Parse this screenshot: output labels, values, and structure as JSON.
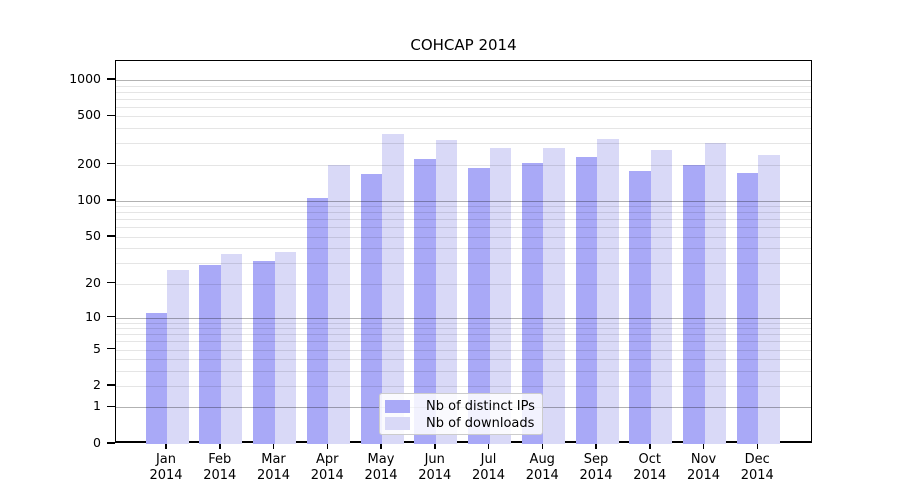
{
  "title": "COHCAP 2014",
  "colors": {
    "ips_bar": "#a9a9f7",
    "downloads_bar": "#d9d9f7",
    "grid_minor": "rgba(0,0,0,0.10)",
    "grid_major": "rgba(0,0,0,0.30)",
    "axis": "#000000",
    "legend_border": "#cccccc",
    "legend_background": "rgba(255,255,255,0.85)"
  },
  "legend": {
    "entries": [
      {
        "label": "Nb of distinct IPs",
        "color_key": "ips_bar"
      },
      {
        "label": "Nb of downloads",
        "color_key": "downloads_bar"
      }
    ]
  },
  "chart_data": {
    "type": "bar",
    "title": "COHCAP 2014",
    "scale": "log10(value+1)",
    "ylim": [
      0,
      1435
    ],
    "grid": true,
    "legend_position": "bottom-center-inside",
    "categories": [
      {
        "month": "Jan",
        "year": "2014"
      },
      {
        "month": "Feb",
        "year": "2014"
      },
      {
        "month": "Mar",
        "year": "2014"
      },
      {
        "month": "Apr",
        "year": "2014"
      },
      {
        "month": "May",
        "year": "2014"
      },
      {
        "month": "Jun",
        "year": "2014"
      },
      {
        "month": "Jul",
        "year": "2014"
      },
      {
        "month": "Aug",
        "year": "2014"
      },
      {
        "month": "Sep",
        "year": "2014"
      },
      {
        "month": "Oct",
        "year": "2014"
      },
      {
        "month": "Nov",
        "year": "2014"
      },
      {
        "month": "Dec",
        "year": "2014"
      }
    ],
    "series": [
      {
        "name": "Nb of distinct IPs",
        "values": [
          11,
          29,
          31,
          105,
          166,
          224,
          189,
          207,
          230,
          178,
          200,
          170
        ]
      },
      {
        "name": "Nb of downloads",
        "values": [
          26,
          36,
          37,
          200,
          356,
          317,
          277,
          275,
          325,
          263,
          301,
          240
        ]
      }
    ],
    "y_ticks": [
      1000,
      500,
      200,
      100,
      50,
      20,
      10,
      5,
      2,
      1,
      0
    ],
    "gridline_values_major": [
      1,
      10,
      100,
      1000
    ],
    "gridline_values_minor": [
      2,
      3,
      4,
      5,
      6,
      7,
      8,
      9,
      20,
      30,
      40,
      50,
      60,
      70,
      80,
      90,
      200,
      300,
      400,
      500,
      600,
      700,
      800,
      900
    ]
  }
}
